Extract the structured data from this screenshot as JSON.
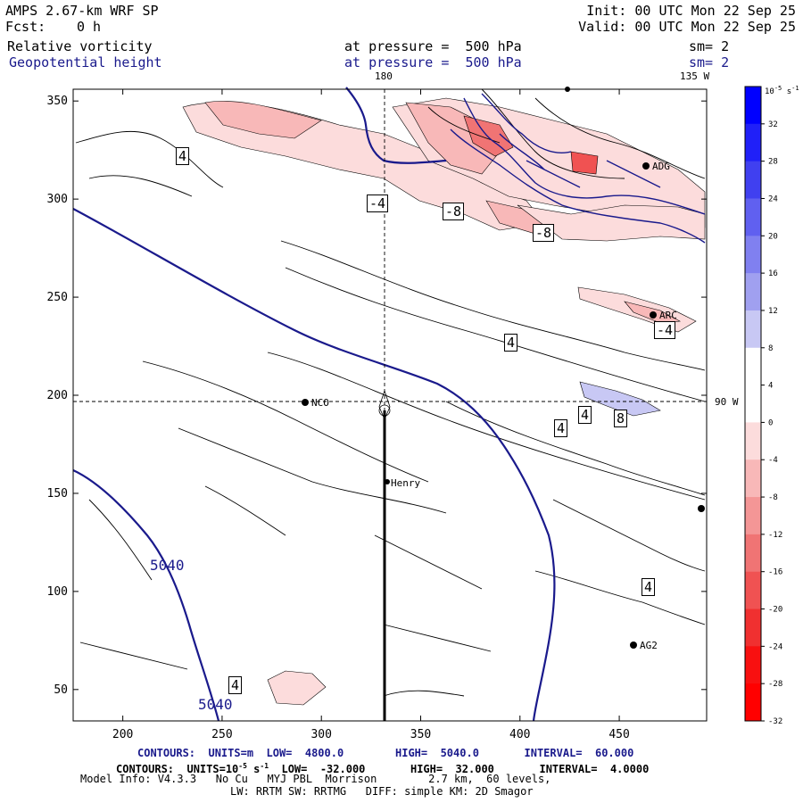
{
  "header": {
    "model": "AMPS 2.67-km WRF SP",
    "fcst_label": "Fcst:",
    "fcst_value": "0 h",
    "init": "Init: 00 UTC Mon 22 Sep 25",
    "valid": "Valid: 00 UTC Mon 22 Sep 25",
    "field1_name": "Relative vorticity",
    "field1_level": "at pressure =  500 hPa",
    "field1_sm": "sm= 2",
    "field2_name": "Geopotential height",
    "field2_level": "at pressure =  500 hPa",
    "field2_sm": "sm= 2"
  },
  "map_labels": {
    "lon_180": "180",
    "lon_135w": "135 W",
    "lon_90w": "90 W",
    "stations": [
      "NCO",
      "Henry",
      "ADG",
      "ARC",
      "AG2"
    ],
    "height_labels": [
      "5040",
      "5040"
    ],
    "vort_labels": [
      "4",
      "-4",
      "-8",
      "-8",
      "4",
      "4",
      "4",
      "-4",
      "8",
      "4",
      "4"
    ]
  },
  "footer": {
    "line1_contours": "CONTOURS:  UNITS=m",
    "line1_low": "LOW=  4800.0",
    "line1_high": "HIGH=  5040.0",
    "line1_interval": "INTERVAL=  60.000",
    "line2_contours": "CONTOURS:  UNITS=10",
    "line2_low": "LOW=  -32.000",
    "line2_high": "HIGH=  32.000",
    "line2_interval": "INTERVAL=  4.0000",
    "line3": "Model Info: V4.3.3   No Cu   MYJ PBL  Morrison        2.7 km,  60 levels,",
    "line4": "LW: RRTM SW: RRTMG   DIFF: simple KM: 2D Smagor"
  },
  "colorbar": {
    "unit": "10",
    "unit_exp": "-5",
    "unit_suffix": "s",
    "unit_suffix_exp": "-1",
    "ticks": [
      "32",
      "28",
      "24",
      "20",
      "16",
      "12",
      "8",
      "4",
      "0",
      "-4",
      "-8",
      "-12",
      "-16",
      "-20",
      "-24",
      "-28",
      "-32"
    ],
    "colors": [
      "#0000ff",
      "#2020f8",
      "#4040f0",
      "#6060f0",
      "#8080f0",
      "#a0a0f0",
      "#c8c8f4",
      "#ffffff",
      "#ffffff",
      "#fcdcdc",
      "#f8b8b8",
      "#f49696",
      "#f07474",
      "#f05252",
      "#f03030",
      "#f81010",
      "#ff0000"
    ]
  },
  "chart_data": {
    "type": "heatmap",
    "title": "Relative vorticity at pressure = 500 hPa; Geopotential height at pressure = 500 hPa",
    "x_ticks": [
      200,
      250,
      300,
      350,
      400,
      450
    ],
    "y_ticks": [
      50,
      100,
      150,
      200,
      250,
      300,
      350
    ],
    "xlim": [
      175,
      494
    ],
    "ylim": [
      34,
      356
    ],
    "height_contours": {
      "units": "m",
      "low": 4800.0,
      "high": 5040.0,
      "interval": 60.0
    },
    "vorticity_contours": {
      "units": "10^-5 s^-1",
      "low": -32.0,
      "high": 32.0,
      "interval": 4.0
    },
    "colorbar_range": [
      -32,
      32
    ]
  }
}
